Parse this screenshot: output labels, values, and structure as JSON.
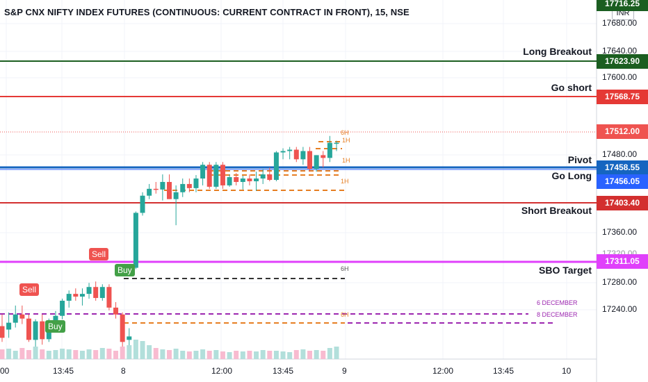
{
  "header": {
    "title": "S&P CNX NIFTY INDEX FUTURES (CONTINUOUS: CURRENT CONTRACT IN FRONT), 15, NSE",
    "currency": "INR"
  },
  "price_axis": {
    "ticks": [
      "17680.00",
      "17640.00",
      "17600.00",
      "17480.00",
      "17360.00",
      "17280.00",
      "17240.00"
    ],
    "top_tag": "17716.25",
    "partial_tick": "17320.00"
  },
  "time_axis": {
    "labels": [
      "00",
      "13:45",
      "8",
      "12:00",
      "13:45",
      "9",
      "12:00",
      "13:45",
      "10"
    ]
  },
  "levels": {
    "long_breakout": {
      "label": "Long Breakout",
      "price": "17623.90",
      "color": "#1b5e20"
    },
    "go_short": {
      "label": "Go short",
      "price": "17568.75",
      "color": "#e53935"
    },
    "last_price": {
      "label": "",
      "price": "17512.00",
      "color": "#ef5350"
    },
    "pivot": {
      "label": "Pivot",
      "price": "17458.55",
      "color": "#1565c0"
    },
    "go_long": {
      "label": "Go Long",
      "price": "17456.05",
      "color": "#2962ff"
    },
    "short_breakout": {
      "label": "Short Breakout",
      "price": "17403.40",
      "color": "#d32f2f"
    },
    "sbo_target": {
      "label": "SBO Target",
      "price": "17311.05",
      "color": "#e040fb"
    }
  },
  "signals": [
    {
      "text": "Sell",
      "type": "sell"
    },
    {
      "text": "Sell",
      "type": "sell"
    },
    {
      "text": "Buy",
      "type": "buy"
    },
    {
      "text": "Buy",
      "type": "buy"
    }
  ],
  "annotations": {
    "six_h_a": "6H",
    "one_h_a": "1H",
    "one_h_b": "1H",
    "one_h_c": "1H",
    "six_h_b": "6H",
    "six_h_c": "6H",
    "dec6": "6 DECEMBER",
    "dec8": "8 DECEMBER"
  },
  "colors": {
    "up": "#26a69a",
    "down": "#ef5350",
    "vol_up": "#b2dfdb",
    "vol_down": "#f8bbd0"
  },
  "chart_data": {
    "type": "candlestick",
    "y_range": [
      17195,
      17720
    ],
    "candles": [
      {
        "o": 17245,
        "h": 17262,
        "l": 17222,
        "c": 17228
      },
      {
        "o": 17240,
        "h": 17265,
        "l": 17228,
        "c": 17250
      },
      {
        "o": 17250,
        "h": 17275,
        "l": 17243,
        "c": 17262
      },
      {
        "o": 17262,
        "h": 17275,
        "l": 17248,
        "c": 17256
      },
      {
        "o": 17256,
        "h": 17262,
        "l": 17222,
        "c": 17225
      },
      {
        "o": 17225,
        "h": 17255,
        "l": 17215,
        "c": 17252
      },
      {
        "o": 17252,
        "h": 17262,
        "l": 17218,
        "c": 17226
      },
      {
        "o": 17226,
        "h": 17256,
        "l": 17222,
        "c": 17250
      },
      {
        "o": 17250,
        "h": 17267,
        "l": 17242,
        "c": 17260
      },
      {
        "o": 17260,
        "h": 17285,
        "l": 17255,
        "c": 17282
      },
      {
        "o": 17282,
        "h": 17297,
        "l": 17272,
        "c": 17292
      },
      {
        "o": 17292,
        "h": 17300,
        "l": 17282,
        "c": 17288
      },
      {
        "o": 17288,
        "h": 17300,
        "l": 17275,
        "c": 17292
      },
      {
        "o": 17292,
        "h": 17308,
        "l": 17285,
        "c": 17302
      },
      {
        "o": 17302,
        "h": 17310,
        "l": 17282,
        "c": 17286
      },
      {
        "o": 17286,
        "h": 17306,
        "l": 17282,
        "c": 17302
      },
      {
        "o": 17302,
        "h": 17306,
        "l": 17268,
        "c": 17272
      },
      {
        "o": 17272,
        "h": 17280,
        "l": 17256,
        "c": 17262
      },
      {
        "o": 17262,
        "h": 17265,
        "l": 17215,
        "c": 17222
      },
      {
        "o": 17225,
        "h": 17242,
        "l": 17212,
        "c": 17230
      },
      {
        "o": 17330,
        "h": 17412,
        "l": 17328,
        "c": 17410
      },
      {
        "o": 17410,
        "h": 17440,
        "l": 17406,
        "c": 17435
      },
      {
        "o": 17435,
        "h": 17452,
        "l": 17430,
        "c": 17445
      },
      {
        "o": 17445,
        "h": 17455,
        "l": 17438,
        "c": 17444
      },
      {
        "o": 17444,
        "h": 17466,
        "l": 17428,
        "c": 17455
      },
      {
        "o": 17455,
        "h": 17466,
        "l": 17430,
        "c": 17430
      },
      {
        "o": 17430,
        "h": 17450,
        "l": 17392,
        "c": 17440
      },
      {
        "o": 17440,
        "h": 17460,
        "l": 17433,
        "c": 17452
      },
      {
        "o": 17452,
        "h": 17460,
        "l": 17440,
        "c": 17446
      },
      {
        "o": 17446,
        "h": 17465,
        "l": 17440,
        "c": 17460
      },
      {
        "o": 17460,
        "h": 17484,
        "l": 17450,
        "c": 17480
      },
      {
        "o": 17480,
        "h": 17484,
        "l": 17445,
        "c": 17448
      },
      {
        "o": 17448,
        "h": 17484,
        "l": 17445,
        "c": 17480
      },
      {
        "o": 17480,
        "h": 17484,
        "l": 17445,
        "c": 17450
      },
      {
        "o": 17450,
        "h": 17466,
        "l": 17448,
        "c": 17462
      },
      {
        "o": 17462,
        "h": 17468,
        "l": 17450,
        "c": 17455
      },
      {
        "o": 17455,
        "h": 17464,
        "l": 17444,
        "c": 17460
      },
      {
        "o": 17460,
        "h": 17466,
        "l": 17450,
        "c": 17456
      },
      {
        "o": 17456,
        "h": 17470,
        "l": 17442,
        "c": 17460
      },
      {
        "o": 17460,
        "h": 17474,
        "l": 17452,
        "c": 17466
      },
      {
        "o": 17466,
        "h": 17476,
        "l": 17456,
        "c": 17458
      },
      {
        "o": 17458,
        "h": 17500,
        "l": 17456,
        "c": 17498
      },
      {
        "o": 17498,
        "h": 17504,
        "l": 17488,
        "c": 17500
      },
      {
        "o": 17500,
        "h": 17506,
        "l": 17488,
        "c": 17502
      },
      {
        "o": 17502,
        "h": 17506,
        "l": 17484,
        "c": 17488
      },
      {
        "o": 17488,
        "h": 17506,
        "l": 17480,
        "c": 17500
      },
      {
        "o": 17500,
        "h": 17506,
        "l": 17470,
        "c": 17474
      },
      {
        "o": 17474,
        "h": 17494,
        "l": 17470,
        "c": 17494
      },
      {
        "o": 17494,
        "h": 17500,
        "l": 17476,
        "c": 17490
      },
      {
        "o": 17490,
        "h": 17522,
        "l": 17484,
        "c": 17512
      },
      {
        "o": 17512,
        "h": 17515,
        "l": 17500,
        "c": 17512
      }
    ],
    "volume": [
      14,
      15,
      12,
      16,
      13,
      18,
      14,
      12,
      13,
      15,
      14,
      13,
      12,
      14,
      13,
      16,
      15,
      12,
      18,
      20,
      28,
      26,
      20,
      16,
      14,
      13,
      15,
      12,
      11,
      12,
      14,
      12,
      13,
      11,
      10,
      12,
      11,
      12,
      11,
      13,
      12,
      12,
      11,
      10,
      13,
      14,
      12,
      13,
      12,
      16,
      18
    ]
  }
}
